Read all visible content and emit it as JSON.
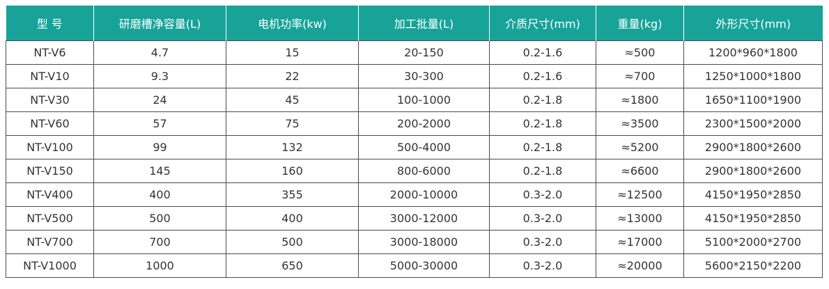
{
  "table": {
    "headers": [
      "型 号",
      "研磨槽净容量(L)",
      "电机功率(kw)",
      "加工批量(L)",
      "介质尺寸(mm)",
      "重量(kg)",
      "外形尺寸(mm)"
    ],
    "rows": [
      [
        "NT-V6",
        "4.7",
        "15",
        "20-150",
        "0.2-1.6",
        "≈500",
        "1200*960*1800"
      ],
      [
        "NT-V10",
        "9.3",
        "22",
        "30-300",
        "0.2-1.6",
        "≈700",
        "1250*1000*1800"
      ],
      [
        "NT-V30",
        "24",
        "45",
        "100-1000",
        "0.2-1.8",
        "≈1800",
        "1650*1100*1900"
      ],
      [
        "NT-V60",
        "57",
        "75",
        "200-2000",
        "0.2-1.8",
        "≈3500",
        "2300*1500*2000"
      ],
      [
        "NT-V100",
        "99",
        "132",
        "500-4000",
        "0.2-1.8",
        "≈5200",
        "2900*1800*2600"
      ],
      [
        "NT-V150",
        "145",
        "160",
        "800-6000",
        "0.2-1.8",
        "≈6600",
        "2900*1800*2600"
      ],
      [
        "NT-V400",
        "400",
        "355",
        "2000-10000",
        "0.3-2.0",
        "≈12500",
        "4150*1950*2850"
      ],
      [
        "NT-V500",
        "500",
        "400",
        "3000-12000",
        "0.3-2.0",
        "≈13000",
        "4150*1950*2850"
      ],
      [
        "NT-V700",
        "700",
        "500",
        "3000-18000",
        "0.3-2.0",
        "≈17000",
        "5100*2000*2700"
      ],
      [
        "NT-V1000",
        "1000",
        "650",
        "5000-30000",
        "0.3-2.0",
        "≈20000",
        "5600*2150*2200"
      ]
    ]
  },
  "colors": {
    "header_bg": "#17a398",
    "header_text": "#ffffff",
    "border": "#4a4a4a",
    "text": "#333333"
  }
}
